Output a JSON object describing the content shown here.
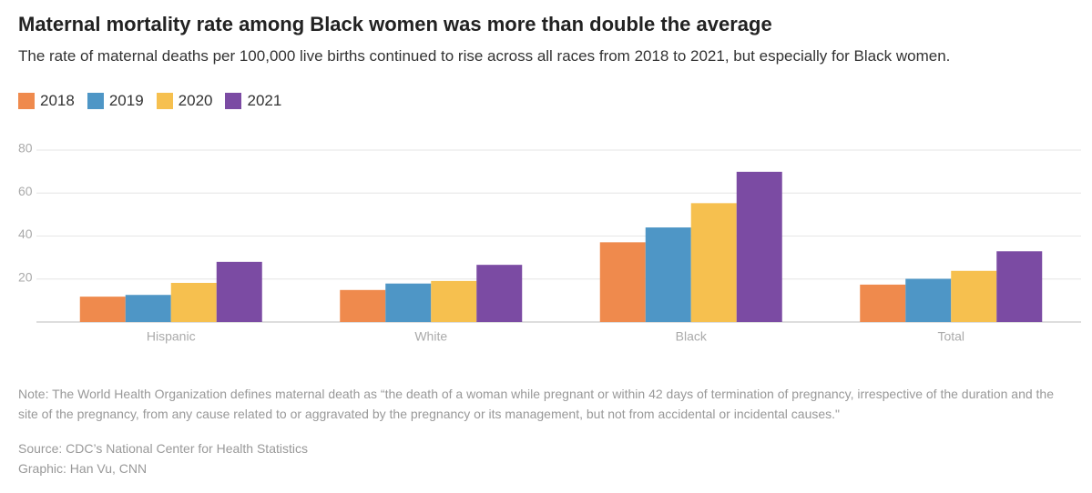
{
  "chart_data": {
    "type": "bar",
    "title": "Maternal mortality rate among Black women was more than double the average",
    "subtitle": "The rate of maternal deaths per 100,000 live births continued to rise across all races from 2018 to 2021, but especially for Black women.",
    "categories": [
      "Hispanic",
      "White",
      "Black",
      "Total"
    ],
    "series": [
      {
        "name": "2018",
        "color": "#ef8a4d",
        "values": [
          11.8,
          14.9,
          37.1,
          17.4
        ]
      },
      {
        "name": "2019",
        "color": "#4e96c6",
        "values": [
          12.6,
          17.9,
          44.0,
          20.1
        ]
      },
      {
        "name": "2020",
        "color": "#f6c04f",
        "values": [
          18.2,
          19.1,
          55.3,
          23.8
        ]
      },
      {
        "name": "2021",
        "color": "#7b4ba3",
        "values": [
          28.0,
          26.6,
          69.9,
          32.9
        ]
      }
    ],
    "ylim": [
      0,
      80
    ],
    "yticks": [
      20,
      40,
      60,
      80
    ],
    "grid": true,
    "legend": "top-left",
    "note": "Note: The World Health Organization defines maternal death as “the death of a woman while pregnant or within 42 days of termination of pregnancy, irrespective of the duration and the site of the pregnancy, from any cause related to or aggravated by the pregnancy or its management, but not from accidental or incidental causes.\"",
    "source": "Source: CDC’s National Center for Health Statistics",
    "credit": "Graphic: Han Vu, CNN"
  }
}
